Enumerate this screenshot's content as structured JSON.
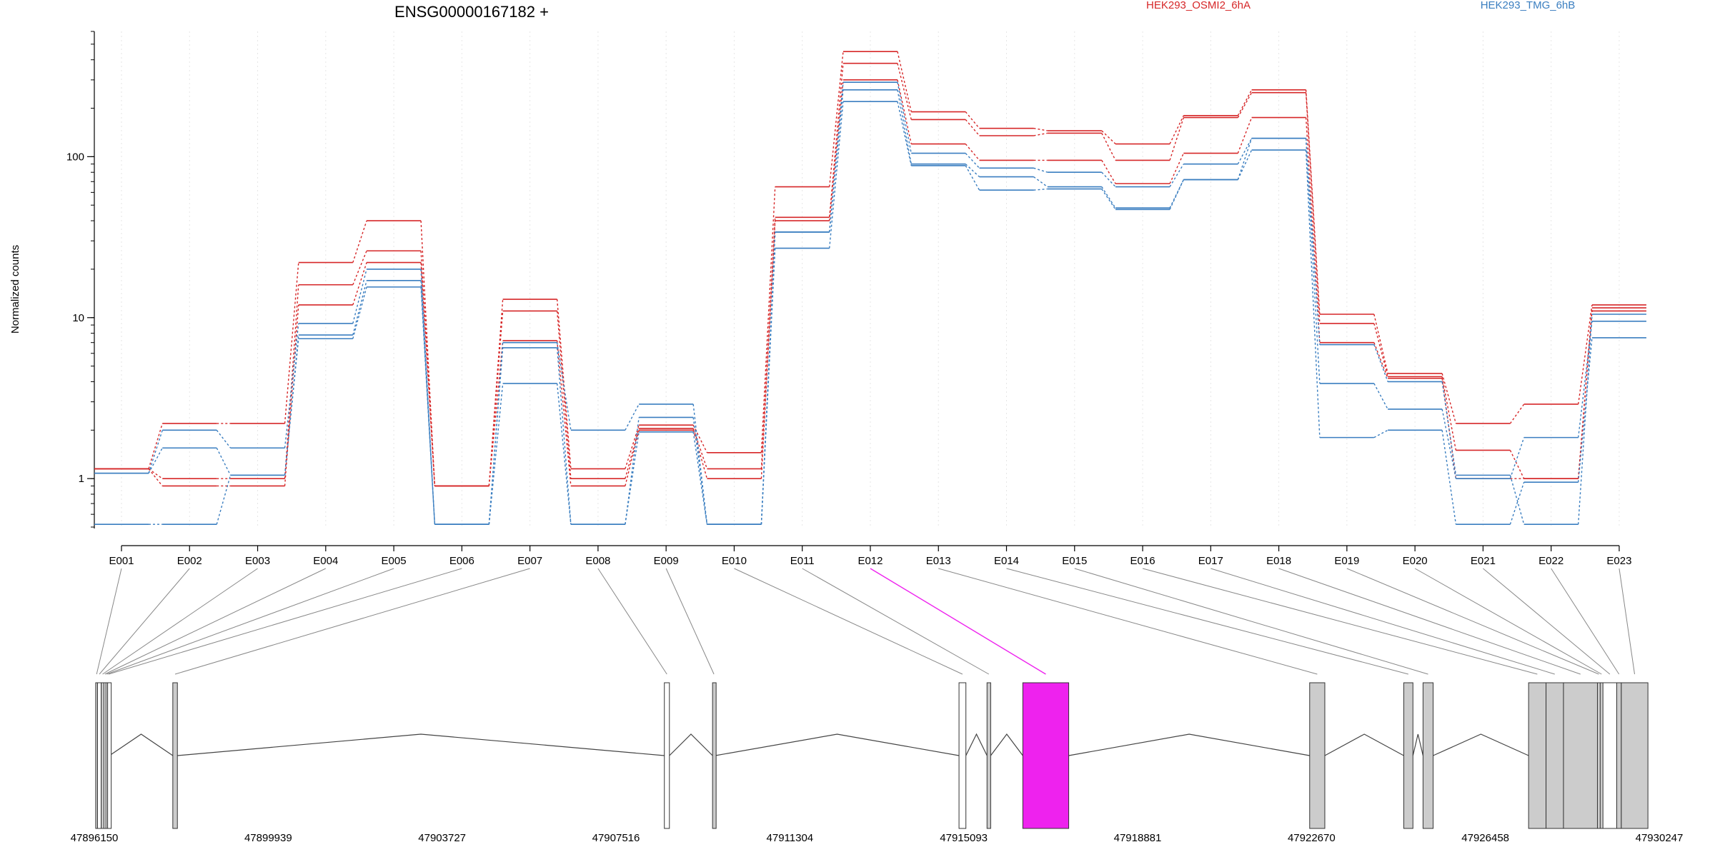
{
  "title": "ENSG00000167182 +",
  "legend": [
    {
      "label": "HEK293_OSMI2_6hA",
      "color": "#d62728"
    },
    {
      "label": "HEK293_TMG_6hB",
      "color": "#3a7ec0"
    }
  ],
  "highlight_color": "#ee22ee",
  "exon_fill": "#cccccc",
  "chart_data": {
    "type": "line",
    "title": "ENSG00000167182 +",
    "ylabel": "Normalized counts",
    "y_scale": "log",
    "ylim": [
      0.5,
      600
    ],
    "y_ticks": [
      {
        "value": 1,
        "label": "1"
      },
      {
        "value": 10,
        "label": "10"
      },
      {
        "value": 100,
        "label": "100"
      }
    ],
    "categories": [
      "E001",
      "E002",
      "E003",
      "E004",
      "E005",
      "E006",
      "E007",
      "E008",
      "E009",
      "E010",
      "E011",
      "E012",
      "E013",
      "E014",
      "E015",
      "E016",
      "E017",
      "E018",
      "E019",
      "E020",
      "E021",
      "E022",
      "E023"
    ],
    "highlighted_exon": "E012",
    "series": [
      {
        "condition": "HEK293_OSMI2_6hA",
        "color": "#d62728",
        "values": [
          1.15,
          2.2,
          2.2,
          22,
          40,
          0.9,
          13,
          1.15,
          2.15,
          1.45,
          65,
          450,
          190,
          150,
          145,
          120,
          180,
          260,
          10.5,
          4.5,
          2.2,
          2.9,
          12
        ]
      },
      {
        "condition": "HEK293_OSMI2_6hA",
        "color": "#d62728",
        "values": [
          1.15,
          1.0,
          1.0,
          16,
          26,
          0.9,
          11,
          1.0,
          2.05,
          1.15,
          42,
          380,
          170,
          135,
          140,
          95,
          175,
          250,
          9.2,
          4.3,
          1.5,
          1.0,
          11.5
        ]
      },
      {
        "condition": "HEK293_OSMI2_6hA",
        "color": "#d62728",
        "values": [
          1.15,
          0.9,
          0.9,
          12,
          22,
          0.9,
          7.2,
          0.9,
          2.0,
          1.0,
          40,
          300,
          120,
          95,
          95,
          68,
          105,
          175,
          7.0,
          4.2,
          1.0,
          1.0,
          11
        ]
      },
      {
        "condition": "HEK293_TMG_6hB",
        "color": "#3a7ec0",
        "values": [
          1.08,
          2.0,
          1.55,
          9.2,
          20,
          0.52,
          7.0,
          2.0,
          2.9,
          0.52,
          34,
          290,
          105,
          85,
          80,
          65,
          90,
          130,
          6.8,
          4.0,
          1.05,
          0.52,
          10.5
        ]
      },
      {
        "condition": "HEK293_TMG_6hB",
        "color": "#3a7ec0",
        "values": [
          1.08,
          1.55,
          1.05,
          7.8,
          17,
          0.52,
          6.5,
          0.52,
          2.4,
          0.52,
          34,
          260,
          90,
          75,
          65,
          48,
          72,
          130,
          3.9,
          2.7,
          1.0,
          1.8,
          9.5
        ]
      },
      {
        "condition": "HEK293_TMG_6hB",
        "color": "#3a7ec0",
        "values": [
          0.52,
          0.52,
          1.05,
          7.4,
          15.5,
          0.52,
          3.9,
          0.52,
          1.95,
          0.52,
          27,
          220,
          88,
          62,
          63,
          47,
          72,
          110,
          1.8,
          2.0,
          0.52,
          0.95,
          7.5
        ]
      }
    ],
    "x_axis_labels": [
      "47896150",
      "47899939",
      "47903727",
      "47907516",
      "47911304",
      "47915093",
      "47918881",
      "47922670",
      "47926458",
      "47930247"
    ]
  },
  "gene_model": {
    "coord_range": [
      47896150,
      47930247
    ],
    "exons": [
      {
        "id": "E001",
        "start": 47896180,
        "end": 47896220,
        "fill": "#cccccc"
      },
      {
        "id": "E002",
        "start": 47896220,
        "end": 47896300,
        "fill": "#ffffff"
      },
      {
        "id": "E003",
        "start": 47896300,
        "end": 47896360,
        "fill": "#cccccc"
      },
      {
        "id": "E004",
        "start": 47896360,
        "end": 47896400,
        "fill": "#ffffff"
      },
      {
        "id": "E005",
        "start": 47896400,
        "end": 47896440,
        "fill": "#cccccc"
      },
      {
        "id": "E006",
        "start": 47896440,
        "end": 47896480,
        "fill": "#ffffff"
      },
      {
        "id": "E007",
        "start": 47897860,
        "end": 47897960,
        "fill": "#cccccc"
      },
      {
        "id": "E008",
        "start": 47908570,
        "end": 47908680,
        "fill": "#ffffff"
      },
      {
        "id": "E009",
        "start": 47909620,
        "end": 47909680,
        "fill": "#cccccc"
      },
      {
        "id": "E010",
        "start": 47914990,
        "end": 47915140,
        "fill": "#ffffff"
      },
      {
        "id": "E011",
        "start": 47915600,
        "end": 47915680,
        "fill": "#cccccc"
      },
      {
        "id": "E012",
        "start": 47916380,
        "end": 47917380,
        "fill": "#ee22ee"
      },
      {
        "id": "E013",
        "start": 47922630,
        "end": 47922960,
        "fill": "#cccccc"
      },
      {
        "id": "E014",
        "start": 47924680,
        "end": 47924880,
        "fill": "#cccccc"
      },
      {
        "id": "E015",
        "start": 47925100,
        "end": 47925320,
        "fill": "#cccccc"
      },
      {
        "id": "E016",
        "start": 47927400,
        "end": 47927780,
        "fill": "#cccccc"
      },
      {
        "id": "E017",
        "start": 47927780,
        "end": 47928160,
        "fill": "#cccccc"
      },
      {
        "id": "E018",
        "start": 47928160,
        "end": 47928900,
        "fill": "#cccccc"
      },
      {
        "id": "E019",
        "start": 47928900,
        "end": 47928960,
        "fill": "#cccccc"
      },
      {
        "id": "E020",
        "start": 47928960,
        "end": 47929020,
        "fill": "#cccccc"
      },
      {
        "id": "E021",
        "start": 47929020,
        "end": 47929320,
        "fill": "#ffffff"
      },
      {
        "id": "E022",
        "start": 47929320,
        "end": 47929420,
        "fill": "#cccccc"
      },
      {
        "id": "E023",
        "start": 47929420,
        "end": 47930000,
        "fill": "#cccccc"
      }
    ]
  }
}
